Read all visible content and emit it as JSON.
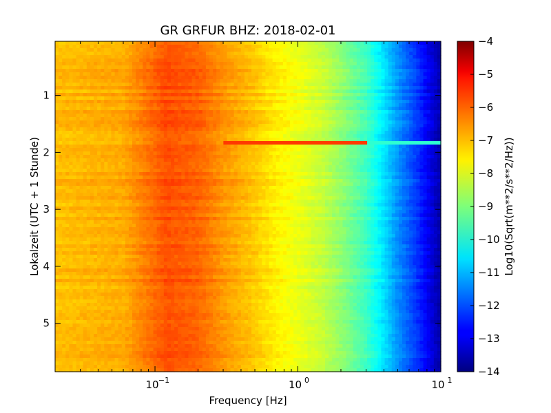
{
  "chart_data": {
    "type": "heatmap",
    "title": "GR GRFUR BHZ: 2018-02-01",
    "xlabel": "Frequency [Hz]",
    "ylabel": "Lokalzeit (UTC + 1 Stunde)",
    "x_scale": "log",
    "xlim": [
      0.02,
      10
    ],
    "x_ticks": [
      {
        "value": 0.1,
        "base": "10",
        "exp": "−1"
      },
      {
        "value": 1,
        "base": "10",
        "exp": "0"
      },
      {
        "value": 10,
        "base": "10",
        "exp": "1"
      }
    ],
    "ylim": [
      0.05,
      5.85
    ],
    "y_inverted": true,
    "y_ticks": [
      1,
      2,
      3,
      4,
      5
    ],
    "colorbar": {
      "label": "Log10(Sqrt(m**2/s**2/Hz))",
      "colormap": "jet",
      "range": [
        -14,
        -4
      ],
      "ticks": [
        "−4",
        "−5",
        "−6",
        "−7",
        "−8",
        "−9",
        "−10",
        "−11",
        "−12",
        "−13",
        "−14"
      ]
    },
    "spectrum_profile": {
      "frequency_hz": [
        0.02,
        0.06,
        0.12,
        0.2,
        0.3,
        0.5,
        0.7,
        1.0,
        1.5,
        2.0,
        3.0,
        4.0,
        5.0,
        7.0,
        10.0
      ],
      "log10_amplitude": [
        -7.1,
        -6.9,
        -6.0,
        -6.2,
        -6.7,
        -7.2,
        -7.6,
        -7.9,
        -8.3,
        -8.8,
        -9.6,
        -10.5,
        -11.3,
        -12.3,
        -13.6
      ]
    },
    "features": [
      {
        "type": "horizontal_line",
        "time": 1.85,
        "freq_from": 0.3,
        "freq_to": 10,
        "log10_amplitude": -5.8
      }
    ]
  }
}
